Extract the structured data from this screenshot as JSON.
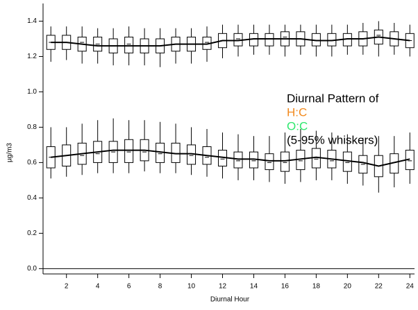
{
  "chart_data": {
    "type": "box",
    "xlabel": "Diurnal Hour",
    "ylabel": "µg/m3",
    "annotations": [
      "Diurnal Pattern of",
      "(5-95% whiskers)"
    ],
    "x": [
      1,
      2,
      3,
      4,
      5,
      6,
      7,
      8,
      9,
      10,
      11,
      12,
      13,
      14,
      15,
      16,
      17,
      18,
      19,
      20,
      21,
      22,
      23,
      24
    ],
    "xlim": [
      0.5,
      24.3
    ],
    "xticks": [
      2,
      4,
      6,
      8,
      10,
      12,
      14,
      16,
      18,
      20,
      22,
      24
    ],
    "ylim": [
      -0.03,
      1.5
    ],
    "yticks": [
      {
        "value": 0,
        "label": "0.0"
      },
      0.2,
      0.4,
      0.6,
      0.8,
      {
        "value": 1,
        "label": "1.0"
      },
      1.2,
      1.4
    ],
    "series": [
      {
        "name": "H:C",
        "color": "#f28a1e",
        "mean": [
          1.28,
          1.28,
          1.27,
          1.26,
          1.26,
          1.26,
          1.26,
          1.26,
          1.27,
          1.27,
          1.27,
          1.29,
          1.29,
          1.3,
          1.3,
          1.3,
          1.3,
          1.29,
          1.29,
          1.3,
          1.3,
          1.31,
          1.3,
          1.29
        ],
        "whislo": [
          1.17,
          1.18,
          1.16,
          1.16,
          1.15,
          1.15,
          1.15,
          1.14,
          1.16,
          1.16,
          1.17,
          1.19,
          1.2,
          1.21,
          1.21,
          1.2,
          1.21,
          1.2,
          1.2,
          1.21,
          1.21,
          1.2,
          1.21,
          1.2
        ],
        "q1": [
          1.24,
          1.24,
          1.23,
          1.23,
          1.22,
          1.22,
          1.22,
          1.22,
          1.23,
          1.23,
          1.24,
          1.25,
          1.26,
          1.26,
          1.26,
          1.26,
          1.26,
          1.26,
          1.26,
          1.26,
          1.26,
          1.27,
          1.26,
          1.25
        ],
        "median": [
          1.28,
          1.28,
          1.28,
          1.27,
          1.26,
          1.27,
          1.26,
          1.26,
          1.27,
          1.27,
          1.28,
          1.29,
          1.3,
          1.3,
          1.3,
          1.31,
          1.3,
          1.29,
          1.29,
          1.3,
          1.3,
          1.32,
          1.3,
          1.29
        ],
        "q3": [
          1.32,
          1.32,
          1.31,
          1.31,
          1.3,
          1.31,
          1.3,
          1.3,
          1.31,
          1.31,
          1.31,
          1.33,
          1.33,
          1.33,
          1.33,
          1.34,
          1.34,
          1.33,
          1.33,
          1.33,
          1.34,
          1.35,
          1.34,
          1.33
        ],
        "whishi": [
          1.37,
          1.37,
          1.37,
          1.36,
          1.36,
          1.37,
          1.36,
          1.36,
          1.36,
          1.36,
          1.37,
          1.38,
          1.38,
          1.38,
          1.38,
          1.38,
          1.38,
          1.38,
          1.38,
          1.38,
          1.39,
          1.4,
          1.39,
          1.38
        ]
      },
      {
        "name": "O:C",
        "color": "#2ee86e",
        "mean": [
          0.63,
          0.64,
          0.65,
          0.66,
          0.67,
          0.67,
          0.67,
          0.66,
          0.65,
          0.65,
          0.64,
          0.63,
          0.62,
          0.62,
          0.61,
          0.61,
          0.62,
          0.63,
          0.62,
          0.61,
          0.6,
          0.58,
          0.6,
          0.62
        ],
        "whislo": [
          0.51,
          0.52,
          0.53,
          0.54,
          0.54,
          0.54,
          0.55,
          0.54,
          0.54,
          0.53,
          0.52,
          0.51,
          0.5,
          0.5,
          0.49,
          0.48,
          0.49,
          0.5,
          0.5,
          0.48,
          0.47,
          0.43,
          0.46,
          0.48
        ],
        "q1": [
          0.57,
          0.58,
          0.59,
          0.6,
          0.6,
          0.6,
          0.61,
          0.6,
          0.6,
          0.59,
          0.59,
          0.58,
          0.57,
          0.57,
          0.56,
          0.55,
          0.56,
          0.57,
          0.57,
          0.55,
          0.54,
          0.52,
          0.54,
          0.56
        ],
        "median": [
          0.63,
          0.64,
          0.64,
          0.65,
          0.66,
          0.66,
          0.66,
          0.65,
          0.65,
          0.64,
          0.63,
          0.62,
          0.61,
          0.61,
          0.6,
          0.6,
          0.61,
          0.62,
          0.61,
          0.6,
          0.59,
          0.58,
          0.6,
          0.61
        ],
        "q3": [
          0.69,
          0.7,
          0.71,
          0.72,
          0.72,
          0.73,
          0.73,
          0.71,
          0.71,
          0.7,
          0.69,
          0.67,
          0.66,
          0.66,
          0.65,
          0.66,
          0.67,
          0.68,
          0.67,
          0.66,
          0.64,
          0.64,
          0.65,
          0.67
        ],
        "whishi": [
          0.8,
          0.8,
          0.82,
          0.84,
          0.85,
          0.84,
          0.84,
          0.83,
          0.82,
          0.8,
          0.79,
          0.77,
          0.76,
          0.75,
          0.75,
          0.77,
          0.79,
          0.78,
          0.77,
          0.76,
          0.74,
          0.75,
          0.75,
          0.77
        ]
      }
    ]
  }
}
